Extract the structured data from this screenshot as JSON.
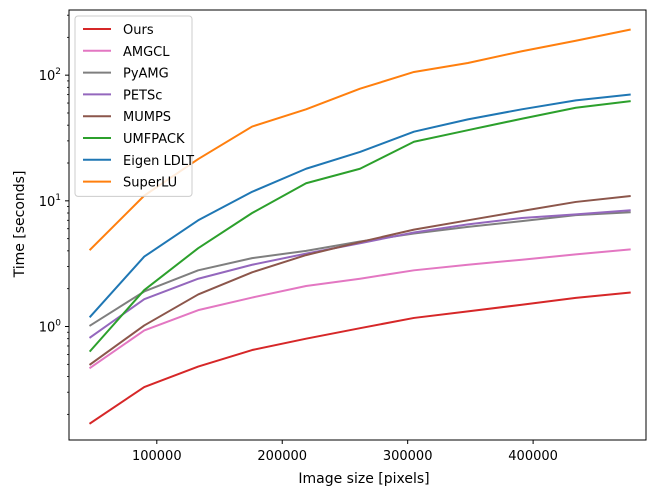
{
  "chart_data": {
    "type": "line",
    "title": "",
    "xlabel": "Image size [pixels]",
    "ylabel": "Time [seconds]",
    "xscale": "linear",
    "yscale": "log",
    "xlim": [
      30000,
      490000
    ],
    "ylim": [
      0.125,
      330
    ],
    "x_ticks": [
      100000,
      200000,
      300000,
      400000
    ],
    "x_tick_labels": [
      "100000",
      "200000",
      "300000",
      "400000"
    ],
    "y_ticks": [
      1,
      10,
      100
    ],
    "y_tick_labels": [
      "10⁰",
      "10¹",
      "10²"
    ],
    "y_tick_base": "10",
    "y_tick_exponents": [
      "0",
      "1",
      "2"
    ],
    "grid": false,
    "legend_position": "top-left",
    "x": [
      47000,
      90000,
      133000,
      176000,
      219000,
      262000,
      305000,
      348000,
      391000,
      434000,
      477000
    ],
    "series": [
      {
        "name": "Ours",
        "color": "#d62728",
        "values": [
          0.17,
          0.33,
          0.48,
          0.65,
          0.8,
          0.97,
          1.17,
          1.32,
          1.49,
          1.69,
          1.86
        ]
      },
      {
        "name": "AMGCL",
        "color": "#e377c2",
        "values": [
          0.47,
          0.93,
          1.35,
          1.7,
          2.1,
          2.4,
          2.8,
          3.1,
          3.4,
          3.75,
          4.1
        ]
      },
      {
        "name": "PyAMG",
        "color": "#7f7f7f",
        "values": [
          1.02,
          1.9,
          2.8,
          3.5,
          4.0,
          4.75,
          5.5,
          6.2,
          6.9,
          7.7,
          8.1
        ]
      },
      {
        "name": "PETSc",
        "color": "#9467bd",
        "values": [
          0.82,
          1.65,
          2.4,
          3.1,
          3.8,
          4.6,
          5.6,
          6.5,
          7.3,
          7.8,
          8.4
        ]
      },
      {
        "name": "MUMPS",
        "color": "#8c564b",
        "values": [
          0.5,
          1.02,
          1.8,
          2.7,
          3.7,
          4.7,
          5.9,
          7.0,
          8.3,
          9.8,
          10.9
        ]
      },
      {
        "name": "UMFPACK",
        "color": "#2ca02c",
        "values": [
          0.64,
          1.95,
          4.2,
          8.0,
          13.8,
          18.0,
          29.5,
          36.5,
          45.0,
          55.0,
          62.0
        ]
      },
      {
        "name": "Eigen LDLT",
        "color": "#1f77b4",
        "values": [
          1.2,
          3.6,
          7.0,
          11.8,
          18.0,
          24.5,
          35.5,
          44.5,
          53.5,
          63.0,
          70.0
        ]
      },
      {
        "name": "SuperLU",
        "color": "#ff7f0e",
        "values": [
          4.1,
          11.0,
          21.5,
          39.0,
          53.5,
          78.0,
          106.0,
          125.0,
          155.0,
          188.0,
          230.0
        ]
      }
    ]
  }
}
